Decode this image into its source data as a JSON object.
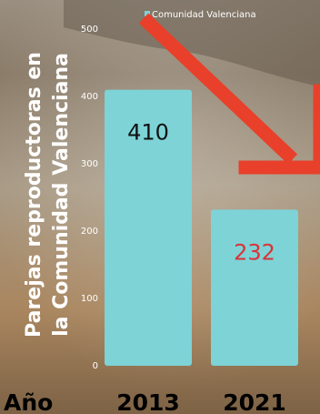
{
  "chart_data": {
    "type": "bar",
    "categories": [
      "2013",
      "2021"
    ],
    "values": [
      410,
      232
    ],
    "data_labels": [
      "410",
      "232"
    ],
    "series": [
      {
        "name": "Comunidad Valenciana",
        "values": [
          410,
          232
        ]
      }
    ],
    "ylabel_lines": [
      "Parejas reproductoras en",
      "la Comunidad Valenciana"
    ],
    "xlabel": "Año",
    "yticks": [
      0,
      100,
      200,
      300,
      400,
      500
    ],
    "ylim": [
      0,
      500
    ],
    "legend_position": "top",
    "grid": false
  },
  "colors": {
    "bar": "#7dd3d6",
    "arrow": "#e8402a",
    "label_2013": "#111111",
    "label_2021": "#d9343a",
    "background_top": "#8f826f",
    "background_bottom": "#a88c67"
  }
}
